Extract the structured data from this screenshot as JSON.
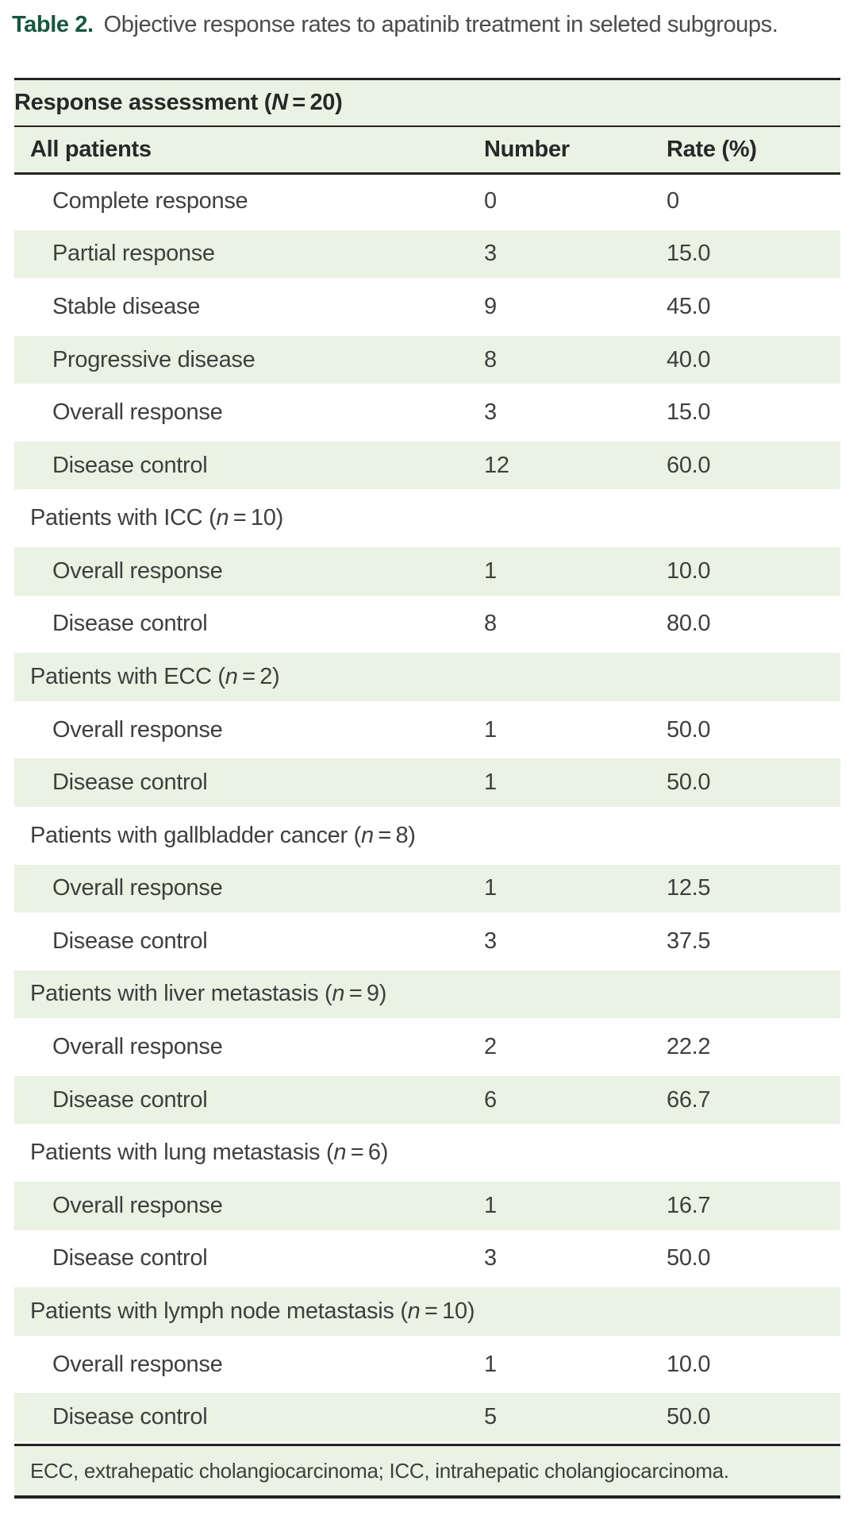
{
  "title": {
    "label": "Table 2.",
    "text": "Objective response rates to apatinib treatment in seleted subgroups."
  },
  "table": {
    "header_row": {
      "prefix": "Response assessment (",
      "var": "N",
      "suffix": " = 20)"
    },
    "columns": {
      "col1": "All patients",
      "col2": "Number",
      "col3": "Rate (%)"
    },
    "rows": [
      {
        "type": "data",
        "label": "Complete response",
        "number": "0",
        "rate": "0",
        "bg": "white"
      },
      {
        "type": "data",
        "label": "Partial response",
        "number": "3",
        "rate": "15.0",
        "bg": "green"
      },
      {
        "type": "data",
        "label": "Stable disease",
        "number": "9",
        "rate": "45.0",
        "bg": "white"
      },
      {
        "type": "data",
        "label": "Progressive disease",
        "number": "8",
        "rate": "40.0",
        "bg": "green"
      },
      {
        "type": "data",
        "label": "Overall response",
        "number": "3",
        "rate": "15.0",
        "bg": "white"
      },
      {
        "type": "data",
        "label": "Disease control",
        "number": "12",
        "rate": "60.0",
        "bg": "green"
      },
      {
        "type": "section",
        "prefix": "Patients with ICC (",
        "var": "n",
        "suffix": " = 10)",
        "bg": "white"
      },
      {
        "type": "data",
        "label": "Overall response",
        "number": "1",
        "rate": "10.0",
        "bg": "green"
      },
      {
        "type": "data",
        "label": "Disease control",
        "number": "8",
        "rate": "80.0",
        "bg": "white"
      },
      {
        "type": "section",
        "prefix": "Patients with ECC (",
        "var": "n",
        "suffix": " = 2)",
        "bg": "green"
      },
      {
        "type": "data",
        "label": "Overall response",
        "number": "1",
        "rate": "50.0",
        "bg": "white"
      },
      {
        "type": "data",
        "label": "Disease control",
        "number": "1",
        "rate": "50.0",
        "bg": "green"
      },
      {
        "type": "section",
        "prefix": "Patients with gallbladder cancer (",
        "var": "n",
        "suffix": " = 8)",
        "bg": "white"
      },
      {
        "type": "data",
        "label": "Overall response",
        "number": "1",
        "rate": "12.5",
        "bg": "green"
      },
      {
        "type": "data",
        "label": "Disease control",
        "number": "3",
        "rate": "37.5",
        "bg": "white"
      },
      {
        "type": "section",
        "prefix": "Patients with liver metastasis (",
        "var": "n",
        "suffix": " = 9)",
        "bg": "green"
      },
      {
        "type": "data",
        "label": "Overall response",
        "number": "2",
        "rate": "22.2",
        "bg": "white"
      },
      {
        "type": "data",
        "label": "Disease control",
        "number": "6",
        "rate": "66.7",
        "bg": "green"
      },
      {
        "type": "section",
        "prefix": "Patients with lung metastasis (",
        "var": "n",
        "suffix": " = 6)",
        "bg": "white"
      },
      {
        "type": "data",
        "label": "Overall response",
        "number": "1",
        "rate": "16.7",
        "bg": "green"
      },
      {
        "type": "data",
        "label": "Disease control",
        "number": "3",
        "rate": "50.0",
        "bg": "white"
      },
      {
        "type": "section",
        "prefix": "Patients with lymph node metastasis (",
        "var": "n",
        "suffix": " = 10)",
        "bg": "green"
      },
      {
        "type": "data",
        "label": "Overall response",
        "number": "1",
        "rate": "10.0",
        "bg": "white"
      },
      {
        "type": "data",
        "label": "Disease control",
        "number": "5",
        "rate": "50.0",
        "bg": "green"
      }
    ],
    "footnote": "ECC, extrahepatic cholangiocarcinoma; ICC, intrahepatic cholangiocarcinoma."
  },
  "colors": {
    "row_green": "#eaf2e4",
    "title_green": "#15583d",
    "rule": "#242120",
    "text_body": "#3d403d",
    "text_bold": "#262928",
    "text_title": "#494c49"
  }
}
